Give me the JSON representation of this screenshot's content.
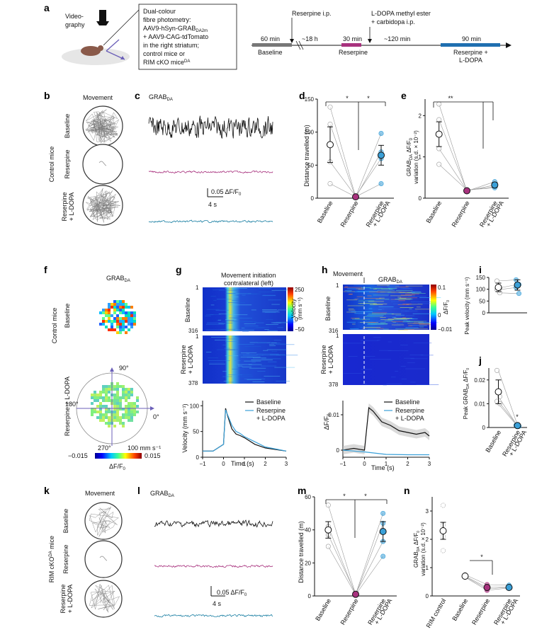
{
  "panel_letters": [
    "a",
    "b",
    "c",
    "d",
    "e",
    "f",
    "g",
    "h",
    "i",
    "j",
    "k",
    "l",
    "m",
    "n"
  ],
  "a": {
    "videography": "Video-\ngraphy",
    "box_lines": [
      "Dual-colour",
      "fibre photometry:",
      "AAV9-hSyn-GRAB",
      "+ AAV9-CAG-tdTomato",
      "in the right striatum;",
      "control mice or",
      "RIM cKO mice"
    ],
    "box_sub": "DA2m",
    "box_sup": "DA",
    "reserpine_ip": "Reserpine i.p.",
    "ldopa_line1": "L-DOPA methyl ester",
    "ldopa_line2": "+ carbidopa i.p.",
    "seg_baseline_dur": "60 min",
    "seg_gap1": "~18 h",
    "seg_reserpine_dur": "30 min",
    "seg_gap2": "~120 min",
    "seg_ldopa_dur": "90 min",
    "lbl_baseline": "Baseline",
    "lbl_reserpine": "Reserpine",
    "lbl_ldopa1": "Reserpine +",
    "lbl_ldopa2": "L-DOPA",
    "colors": {
      "baseline": "#777777",
      "reserpine": "#a8327e",
      "ldopa": "#1f6fb0"
    }
  },
  "b": {
    "title": "Movement",
    "side_label": "Control mice",
    "rows": [
      "Baseline",
      "Reserpine",
      "Reserpine\n+ L-DOPA"
    ]
  },
  "c": {
    "title": "GRAB",
    "title_sub": "DA",
    "scale_y": "0.05 ΔF/F",
    "scale_y_sub": "0",
    "scale_x": "4 s",
    "colors": {
      "baseline": "#111111",
      "reserpine": "#a8327e",
      "ldopa": "#1a7fa3"
    }
  },
  "d": {
    "ylabel": "Distance travelled (m)",
    "yticks": [
      "0",
      "50",
      "100",
      "150"
    ],
    "categories": [
      "Baseline",
      "Reserpine",
      "Reserpine\n+ L-DOPA"
    ],
    "sig": [
      "*",
      "*"
    ]
  },
  "e": {
    "ylabel": "GRAB",
    "ylabel_full": "GRABDA ΔF/F0 variation (s.d. × 10⁻²)",
    "yticks": [
      "0",
      "1",
      "2"
    ],
    "categories": [
      "Baseline",
      "Reserpine",
      "Reserpine\n+ L-DOPA"
    ],
    "sig": [
      "**"
    ]
  },
  "f": {
    "title": "GRAB",
    "title_sub": "DA",
    "side_label": "Control mice",
    "row1": "Baseline",
    "row2": "Reserpine + L-DOPA",
    "deg90": "90°",
    "deg180": "180°",
    "deg0": "0°",
    "deg270": "270°",
    "radius": "100 mm s⁻¹",
    "cbar_min": "−0.015",
    "cbar_max": "0.015",
    "cbar_label": "ΔF/F",
    "cbar_label_sub": "0"
  },
  "g": {
    "title1": "Movement initiation",
    "title2": "contralateral (left)",
    "row1": "Baseline",
    "row2": "Reserpine\n+ L-DOPA",
    "row1_ticks": [
      "1",
      "316"
    ],
    "row2_ticks": [
      "1",
      "378"
    ],
    "cbar_ticks": [
      "250",
      "0",
      "−50"
    ],
    "cbar_label": "Velocity\n(mm s⁻¹)",
    "legend": [
      "Baseline",
      "Reserpine\n+ L-DOPA"
    ],
    "ylabel": "Velocity (mm s⁻¹)",
    "yticks": [
      "0",
      "50",
      "100"
    ],
    "xticks": [
      "−1",
      "0",
      "1",
      "2",
      "3"
    ],
    "xlabel": "Time (s)"
  },
  "h": {
    "title_mv": "Movement",
    "title": "GRAB",
    "title_sub": "DA",
    "row1": "Baseline",
    "row2": "Reserpine\n+ L-DOPA",
    "row1_ticks": [
      "1",
      "316"
    ],
    "row2_ticks": [
      "1",
      "378"
    ],
    "cbar_ticks": [
      "0.1",
      "0",
      "−0.01"
    ],
    "cbar_label": "ΔF/F",
    "cbar_label_sub": "0",
    "legend": [
      "Baseline",
      "Reserpine\n+ L-DOPA"
    ],
    "ylabel": "ΔF/F",
    "ylabel_sub": "0",
    "yticks": [
      "0",
      "0.01"
    ],
    "xticks": [
      "−1",
      "0",
      "1",
      "2",
      "3"
    ],
    "xlabel": "Time (s)"
  },
  "i": {
    "ylabel": "Peak velocity (mm s⁻¹)",
    "yticks": [
      "0",
      "50",
      "100",
      "150"
    ]
  },
  "j": {
    "ylabel": "Peak GRABDA ΔF/F0",
    "yticks": [
      "0",
      "0.01",
      "0.02"
    ],
    "categories": [
      "Baseline",
      "Reserpine\n+ L-DOPA"
    ],
    "sig": "*"
  },
  "k": {
    "title": "Movement",
    "side_label": "RIM cKODA mice",
    "rows": [
      "Baseline",
      "Reserpine",
      "Reserpine\n+ L-DOPA"
    ]
  },
  "l": {
    "title": "GRAB",
    "title_sub": "DA",
    "scale_y": "0.05 ΔF/F",
    "scale_y_sub": "0",
    "scale_x": "4 s"
  },
  "m": {
    "ylabel": "Distance travelled (m)",
    "yticks": [
      "0",
      "20",
      "40",
      "60"
    ],
    "categories": [
      "Baseline",
      "Reserpine",
      "Reserpine\n+ L-DOPA"
    ],
    "sig": [
      "*",
      "*"
    ]
  },
  "n": {
    "ylabel": "GRABDA ΔF/F0 variation (s.d. × 10⁻²)",
    "yticks": [
      "0",
      "1",
      "2",
      "3"
    ],
    "categories": [
      "RIM control",
      "Baseline",
      "Reserpine",
      "Reserpine\n+ L-DOPA"
    ],
    "sig": [
      "*"
    ]
  },
  "chart_data": [
    {
      "panel": "d",
      "type": "scatter",
      "ylim": [
        0,
        150
      ],
      "categories": [
        "Baseline",
        "Reserpine",
        "Reserpine + L-DOPA"
      ],
      "means": [
        81,
        2,
        65
      ],
      "errors": [
        27,
        1,
        15
      ],
      "individuals": [
        [
          138,
          112,
          55,
          22
        ],
        [
          2,
          1,
          3,
          2
        ],
        [
          98,
          70,
          60,
          22
        ]
      ]
    },
    {
      "panel": "e",
      "type": "scatter",
      "ylim": [
        0,
        2.4
      ],
      "categories": [
        "Baseline",
        "Reserpine",
        "Reserpine + L-DOPA"
      ],
      "means": [
        1.55,
        0.18,
        0.32
      ],
      "errors": [
        0.3,
        0.02,
        0.06
      ],
      "individuals": [
        [
          2.28,
          1.9,
          1.2,
          0.82
        ],
        [
          0.17,
          0.18,
          0.19,
          0.2
        ],
        [
          0.4,
          0.32,
          0.28,
          0.25
        ]
      ]
    },
    {
      "panel": "i",
      "type": "scatter",
      "ylim": [
        0,
        150
      ],
      "categories": [
        "Baseline",
        "Reserpine + L-DOPA"
      ],
      "means": [
        108,
        118
      ],
      "errors": [
        18,
        22
      ],
      "individuals": [
        [
          135,
          105,
          98,
          85
        ],
        [
          140,
          120,
          108,
          82
        ]
      ]
    },
    {
      "panel": "j",
      "type": "scatter",
      "ylim": [
        0,
        0.025
      ],
      "categories": [
        "Baseline",
        "Reserpine + L-DOPA"
      ],
      "means": [
        0.015,
        0.0008
      ],
      "errors": [
        0.005,
        0.0004
      ],
      "individuals": [
        [
          0.024,
          0.013,
          0.011,
          0.01
        ],
        [
          0.001,
          0.0006,
          0.0008,
          0.0005
        ]
      ]
    },
    {
      "panel": "m",
      "type": "scatter",
      "ylim": [
        0,
        60
      ],
      "categories": [
        "Baseline",
        "Reserpine",
        "Reserpine + L-DOPA"
      ],
      "means": [
        40,
        1,
        39
      ],
      "errors": [
        5,
        0.5,
        6
      ],
      "individuals": [
        [
          55,
          42,
          37,
          30
        ],
        [
          1,
          0.6,
          1.4,
          0.8
        ],
        [
          50,
          44,
          33,
          24
        ]
      ]
    },
    {
      "panel": "n",
      "type": "scatter",
      "ylim": [
        0,
        3.5
      ],
      "categories": [
        "RIM control",
        "Baseline",
        "Reserpine",
        "Reserpine + L-DOPA"
      ],
      "means": [
        2.3,
        0.7,
        0.3,
        0.3
      ],
      "errors": [
        0.3,
        0.05,
        0.05,
        0.05
      ],
      "individuals": [
        [
          3.2,
          2.5,
          2.1,
          1.6
        ],
        [
          0.75,
          0.7,
          0.68,
          0.66
        ],
        [
          0.4,
          0.3,
          0.25,
          0.2
        ],
        [
          0.38,
          0.32,
          0.3,
          0.28
        ]
      ]
    },
    {
      "panel": "g",
      "type": "line",
      "xlim": [
        -1,
        3
      ],
      "ylim": [
        0,
        110
      ],
      "series": [
        {
          "name": "Baseline",
          "x": [
            -1,
            -0.5,
            0,
            0.1,
            0.2,
            0.4,
            0.6,
            0.8,
            1,
            1.5,
            2,
            2.5,
            3
          ],
          "y": [
            12,
            12,
            25,
            95,
            80,
            55,
            45,
            42,
            38,
            25,
            18,
            15,
            12
          ]
        },
        {
          "name": "Reserpine + L-DOPA",
          "x": [
            -1,
            -0.5,
            0,
            0.1,
            0.2,
            0.4,
            0.6,
            0.8,
            1,
            1.5,
            2,
            2.5,
            3
          ],
          "y": [
            12,
            12,
            25,
            92,
            82,
            62,
            50,
            46,
            40,
            30,
            20,
            16,
            12
          ]
        }
      ]
    },
    {
      "panel": "h",
      "type": "line",
      "xlim": [
        -1,
        3
      ],
      "ylim": [
        -0.002,
        0.014
      ],
      "series": [
        {
          "name": "Baseline",
          "x": [
            -1,
            -0.5,
            0,
            0.2,
            0.4,
            0.8,
            1.2,
            1.6,
            2,
            2.4,
            2.8,
            3
          ],
          "y": [
            0,
            0.0005,
            0,
            0.012,
            0.011,
            0.008,
            0.007,
            0.0055,
            0.005,
            0.0045,
            0.005,
            0.004
          ]
        },
        {
          "name": "Reserpine + L-DOPA",
          "x": [
            -1,
            0,
            1,
            2,
            3
          ],
          "y": [
            0,
            -0.0005,
            -0.0012,
            -0.0013,
            -0.0013
          ]
        }
      ]
    }
  ]
}
